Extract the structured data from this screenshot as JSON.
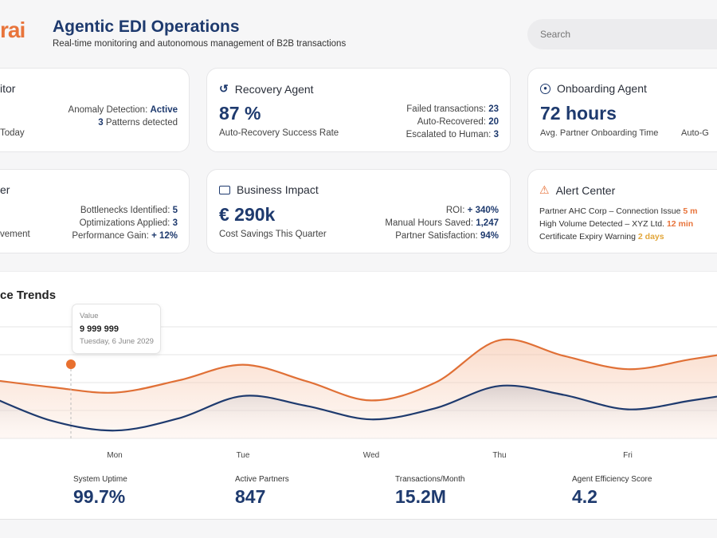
{
  "header": {
    "logo": "rai",
    "title": "Agentic EDI Operations",
    "subtitle": "Real-time monitoring and autonomous management of B2B transactions",
    "search_placeholder": "Search"
  },
  "cards": {
    "monitor": {
      "title": "itor",
      "sub": "Today",
      "stats": [
        {
          "label": "Anomaly Detection:",
          "value": "Active"
        },
        {
          "value": "3",
          "label": "Patterns detected"
        }
      ]
    },
    "recovery": {
      "title": "Recovery Agent",
      "big": "87 %",
      "sub": "Auto-Recovery Success Rate",
      "stats": [
        {
          "label": "Failed transactions:",
          "value": "23"
        },
        {
          "label": "Auto-Recovered:",
          "value": "20"
        },
        {
          "label": "Escalated to Human:",
          "value": "3"
        }
      ]
    },
    "onboarding": {
      "title": "Onboarding Agent",
      "big": "72 hours",
      "sub": "Avg. Partner Onboarding Time",
      "sub2": "Auto-G"
    },
    "optimizer": {
      "title": "er",
      "sub": "vement",
      "stats": [
        {
          "label": "Bottlenecks Identified:",
          "value": "5"
        },
        {
          "label": "Optimizations Applied:",
          "value": "3"
        },
        {
          "label": "Performance Gain:",
          "value": "+ 12%"
        }
      ]
    },
    "business": {
      "title": "Business Impact",
      "big": "€ 290k",
      "sub": "Cost Savings This Quarter",
      "stats": [
        {
          "label": "ROI:",
          "value": "+ 340%"
        },
        {
          "label": "Manual Hours Saved:",
          "value": "1,247"
        },
        {
          "label": "Partner Satisfaction:",
          "value": "94%"
        }
      ]
    },
    "alerts": {
      "title": "Alert Center",
      "items": [
        {
          "text": "Partner AHC Corp – Connection Issue",
          "time": "5 m"
        },
        {
          "text": "High Volume Detected – XYZ Ltd.",
          "time": "12 min"
        },
        {
          "text": "Certificate Expiry Warning",
          "time": "2 days"
        }
      ]
    }
  },
  "chart_title": "ce Trends",
  "tooltip": {
    "label": "Value",
    "value": "9 999 999",
    "date": "Tuesday, 6 June 2029"
  },
  "chart_data": {
    "type": "area",
    "x": [
      -1,
      -0.5,
      0,
      0.5,
      1,
      1.5,
      2,
      2.5,
      3,
      3.5,
      4,
      4.5,
      5
    ],
    "x_tick_labels": {
      "0": "Mon",
      "1": "Tue",
      "2": "Wed",
      "3": "Thu",
      "4": "Fri"
    },
    "ylim": [
      0,
      100
    ],
    "grid": true,
    "series": [
      {
        "color": "#e07036",
        "values": [
          53,
          46,
          41,
          52,
          66,
          51,
          34,
          50,
          88,
          74,
          62,
          71,
          80
        ]
      },
      {
        "color": "#1e3a6e",
        "values": [
          39,
          16,
          7,
          18,
          38,
          29,
          17,
          27,
          47,
          39,
          26,
          34,
          43
        ]
      }
    ]
  },
  "kpis": [
    {
      "label": "System Uptime",
      "value": "99.7%"
    },
    {
      "label": "Active Partners",
      "value": "847"
    },
    {
      "label": "Transactions/Month",
      "value": "15.2M"
    },
    {
      "label": "Agent Efficiency Score",
      "value": "4.2"
    }
  ],
  "colors": {
    "brand": "#1e3a6e",
    "accent": "#e8743b",
    "warning": "#e2a63a"
  }
}
